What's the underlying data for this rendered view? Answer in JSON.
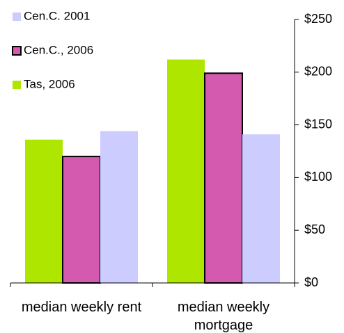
{
  "chart_data": {
    "type": "bar",
    "categories": [
      "median weekly rent",
      "median weekly mortgage"
    ],
    "series": [
      {
        "name": "Tas, 2006",
        "color": "#aee600",
        "values": [
          136,
          212
        ]
      },
      {
        "name": "Cen.C., 2006",
        "color": "#d35aae",
        "edgecolor": "#000000",
        "values": [
          120,
          199
        ]
      },
      {
        "name": "Cen.C. 2001",
        "color": "#ccccff",
        "values": [
          144,
          141
        ]
      }
    ],
    "ylim": [
      0,
      250
    ],
    "yticks": [
      {
        "value": 0,
        "label": "$0"
      },
      {
        "value": 50,
        "label": "$50"
      },
      {
        "value": 100,
        "label": "$100"
      },
      {
        "value": 150,
        "label": "$150"
      },
      {
        "value": 200,
        "label": "$200"
      },
      {
        "value": 250,
        "label": "$250"
      }
    ],
    "y_axis_side": "right",
    "legend": "upper left",
    "grid": false
  }
}
